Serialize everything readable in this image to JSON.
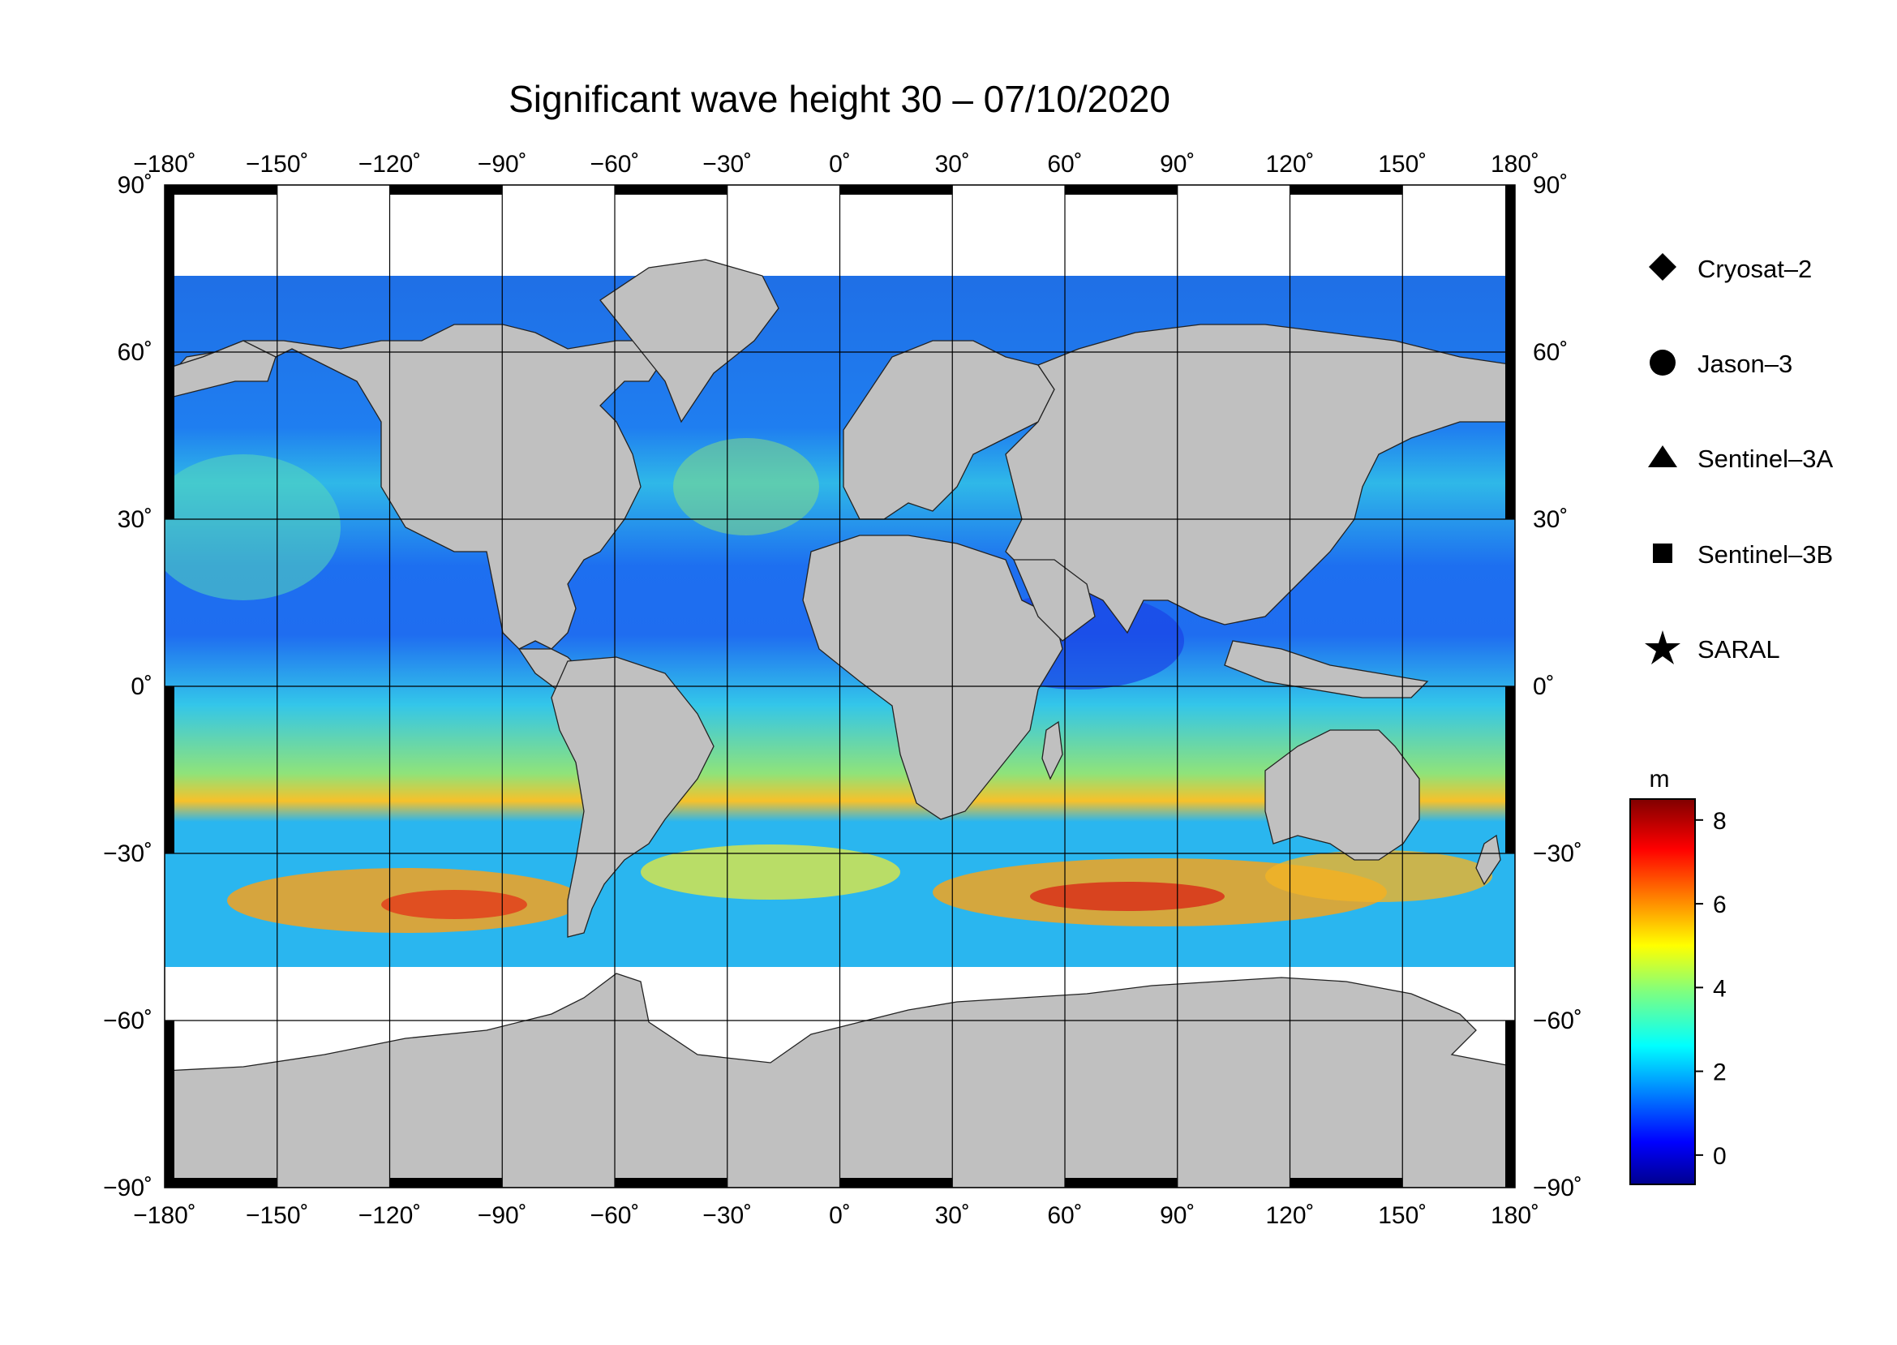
{
  "title": "Significant wave height 30 – 07/10/2020",
  "map": {
    "projection": "equirectangular",
    "lon_range": [
      -180,
      180
    ],
    "lat_range": [
      -90,
      90
    ],
    "graticule_step": 30,
    "lon_ticks": [
      "−180",
      "−150",
      "−120",
      "−90",
      "−60",
      "−30",
      "0",
      "30",
      "60",
      "90",
      "120",
      "150",
      "180"
    ],
    "lat_ticks": [
      "90",
      "60",
      "30",
      "0",
      "−30",
      "−60",
      "−90"
    ],
    "degree_symbol": "˚",
    "colors": {
      "land": "#c0c0c0",
      "ice": "#ffffff",
      "grid": "#000000"
    }
  },
  "legend": {
    "items": [
      {
        "label": "Cryosat–2",
        "symbol": "diamond"
      },
      {
        "label": "Jason–3",
        "symbol": "circle"
      },
      {
        "label": "Sentinel–3A",
        "symbol": "triangle"
      },
      {
        "label": "Sentinel–3B",
        "symbol": "square"
      },
      {
        "label": "SARAL",
        "symbol": "star"
      }
    ]
  },
  "colorbar": {
    "unit": "m",
    "range": [
      -0.7,
      8.5
    ],
    "ticks": [
      0,
      2,
      4,
      6,
      8
    ],
    "colormap": "jet"
  }
}
